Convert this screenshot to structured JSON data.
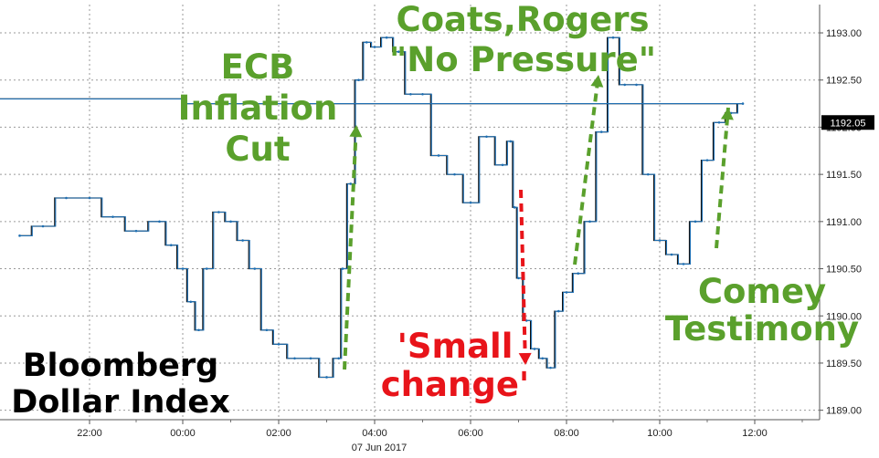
{
  "chart_data": {
    "type": "line",
    "title": "Bloomberg Dollar Index",
    "title_lines": [
      "Bloomberg",
      "Dollar Index"
    ],
    "x_ticks": [
      "22:00",
      "00:00",
      "02:00",
      "04:00",
      "06:00",
      "08:00",
      "10:00",
      "12:00"
    ],
    "date_label": "07 Jun 2017",
    "y_ticks": [
      1189.0,
      1189.5,
      1190.0,
      1190.5,
      1191.0,
      1191.5,
      1192.0,
      1192.5,
      1193.0
    ],
    "ylim": [
      1188.9,
      1193.3
    ],
    "last_value": "1192.05",
    "grid": true,
    "colors": {
      "line": "#1f6fb2",
      "text_green": "#5aa02c",
      "text_red": "#e8141a",
      "last_box": "#000000"
    },
    "series": [
      {
        "x": [
          "20:30",
          "21:00",
          "21:30",
          "22:00",
          "22:30",
          "23:00",
          "23:30",
          "23:45",
          "00:00",
          "00:10",
          "00:20",
          "00:30",
          "00:45",
          "01:00",
          "01:15",
          "01:30",
          "01:45",
          "02:00",
          "02:20",
          "02:40",
          "03:00",
          "03:15",
          "03:20",
          "03:30",
          "03:40",
          "03:50",
          "04:00",
          "04:15",
          "04:30",
          "04:45",
          "05:00",
          "05:20",
          "05:40",
          "06:00",
          "06:20",
          "06:40",
          "06:50",
          "06:55",
          "07:00",
          "07:10",
          "07:20",
          "07:30",
          "07:40",
          "07:50",
          "08:00",
          "08:15",
          "08:30",
          "08:45",
          "09:00",
          "09:15",
          "09:30",
          "09:45",
          "10:00",
          "10:15",
          "10:30",
          "10:45",
          "11:00",
          "11:15",
          "11:30",
          "11:45",
          "12:00",
          "12:15"
        ],
        "y": [
          1190.85,
          1190.95,
          1191.25,
          1191.25,
          1191.05,
          1190.9,
          1191.0,
          1190.75,
          1190.5,
          1190.15,
          1189.85,
          1190.5,
          1191.1,
          1191.0,
          1190.8,
          1190.5,
          1189.85,
          1189.7,
          1189.55,
          1189.55,
          1189.35,
          1189.55,
          1190.5,
          1191.4,
          1192.5,
          1192.9,
          1192.85,
          1192.95,
          1192.8,
          1192.35,
          1192.35,
          1191.7,
          1191.5,
          1191.2,
          1191.9,
          1191.6,
          1191.85,
          1191.15,
          1190.4,
          1189.95,
          1189.65,
          1189.55,
          1189.45,
          1190.05,
          1190.25,
          1190.45,
          1191.0,
          1191.95,
          1192.95,
          1192.45,
          1192.45,
          1191.5,
          1190.8,
          1190.65,
          1190.55,
          1191.0,
          1191.65,
          1192.05,
          1192.15,
          1192.25,
          1192.3,
          1192.05
        ]
      }
    ],
    "annotations": [
      {
        "lines": [
          "ECB",
          "Inflation",
          "Cut"
        ],
        "color": "green"
      },
      {
        "lines": [
          "Coats,Rogers",
          "\"No Pressure\""
        ],
        "color": "green"
      },
      {
        "lines": [
          "'Small",
          "change'"
        ],
        "color": "red"
      },
      {
        "lines": [
          "Comey",
          "Testimony"
        ],
        "color": "green"
      }
    ]
  }
}
